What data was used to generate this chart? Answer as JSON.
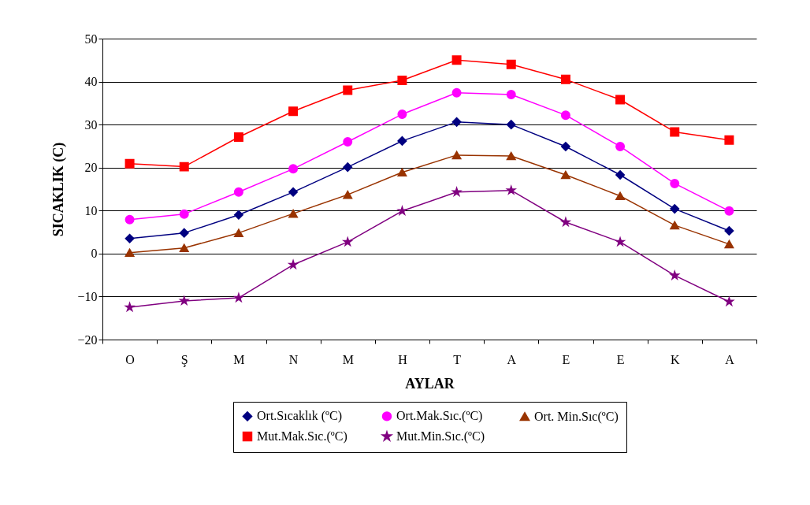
{
  "chart_data": {
    "type": "line",
    "xlabel": "AYLAR",
    "ylabel": "SICAKLIK (C)",
    "categories": [
      "O",
      "Ş",
      "M",
      "N",
      "M",
      "H",
      "T",
      "A",
      "E",
      "E",
      "K",
      "A"
    ],
    "series": [
      {
        "name": "Ort.Sıcaklık (ºC)",
        "color": "#000080",
        "marker": "diamond",
        "values": [
          3.5,
          4.8,
          9,
          14.3,
          20.1,
          26.2,
          30.6,
          30,
          24.9,
          18.3,
          10.4,
          5.3
        ]
      },
      {
        "name": "Ort.Mak.Sıc.(ºC)",
        "color": "#ff00ff",
        "marker": "circle",
        "values": [
          7.9,
          9.2,
          14.3,
          19.7,
          26,
          32.4,
          37.4,
          37,
          32.2,
          24.9,
          16.3,
          9.9
        ]
      },
      {
        "name": "Ort. Min.Sıc(ºC)",
        "color": "#993300",
        "marker": "triangle",
        "values": [
          0.2,
          1.3,
          4.8,
          9.3,
          13.7,
          18.9,
          22.9,
          22.7,
          18.3,
          13.4,
          6.6,
          2.2
        ]
      },
      {
        "name": "Mut.Mak.Sıc.(ºC)",
        "color": "#ff0000",
        "marker": "square",
        "values": [
          20.9,
          20.2,
          27.1,
          33.1,
          38,
          40.3,
          45,
          44,
          40.5,
          35.8,
          28.3,
          26.4
        ]
      },
      {
        "name": "Mut.Min.Sıc.(ºC)",
        "color": "#800080",
        "marker": "star",
        "values": [
          -12.5,
          -11,
          -10.3,
          -2.6,
          2.7,
          9.9,
          14.3,
          14.7,
          7.3,
          2.7,
          -5.1,
          -11.2
        ]
      }
    ],
    "ylim": [
      -20,
      50
    ],
    "yticks": [
      -20,
      -10,
      0,
      10,
      20,
      30,
      40,
      50
    ],
    "grid": "y",
    "legend": "bottom",
    "line_style": "solid"
  }
}
